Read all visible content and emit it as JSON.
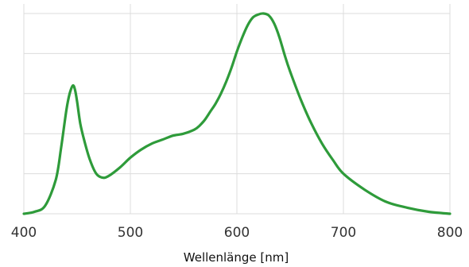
{
  "chart_data": {
    "type": "line",
    "title": "",
    "xlabel": "Wellenlänge [nm]",
    "ylabel": "",
    "xlim": [
      400,
      800
    ],
    "ylim": [
      0,
      1
    ],
    "x_ticks": [
      400,
      500,
      600,
      700,
      800
    ],
    "y_gridlines": [
      0,
      0.2,
      0.4,
      0.6,
      0.8,
      1.0
    ],
    "grid": true,
    "legend": "none",
    "series": [
      {
        "color": "#2e9b3a",
        "x": [
          400,
          410,
          420,
          430,
          435,
          440,
          443,
          446,
          448,
          450,
          453,
          457,
          462,
          468,
          474,
          480,
          490,
          500,
          510,
          520,
          530,
          540,
          550,
          560,
          565,
          570,
          575,
          580,
          585,
          590,
          595,
          600,
          605,
          610,
          615,
          620,
          625,
          630,
          635,
          640,
          645,
          650,
          660,
          670,
          680,
          690,
          700,
          720,
          740,
          760,
          780,
          800
        ],
        "y": [
          0.0,
          0.01,
          0.04,
          0.17,
          0.33,
          0.52,
          0.6,
          0.64,
          0.62,
          0.56,
          0.45,
          0.36,
          0.27,
          0.2,
          0.18,
          0.19,
          0.23,
          0.28,
          0.32,
          0.35,
          0.37,
          0.39,
          0.4,
          0.42,
          0.44,
          0.47,
          0.51,
          0.55,
          0.6,
          0.66,
          0.73,
          0.81,
          0.88,
          0.94,
          0.98,
          0.995,
          1.0,
          0.99,
          0.95,
          0.88,
          0.79,
          0.71,
          0.57,
          0.45,
          0.35,
          0.27,
          0.2,
          0.12,
          0.06,
          0.03,
          0.01,
          0.0
        ]
      }
    ]
  }
}
